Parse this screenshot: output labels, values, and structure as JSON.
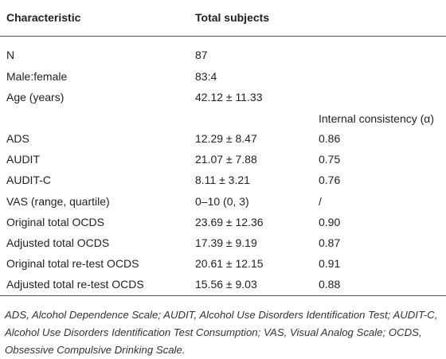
{
  "table": {
    "header": [
      "Characteristic",
      "Total subjects"
    ],
    "rows_top": [
      [
        "N",
        "87"
      ],
      [
        "Male:female",
        "83:4"
      ],
      [
        "Age (years)",
        "42.12 ± 11.33"
      ]
    ],
    "subheader": "Internal consistency (α)",
    "rows": [
      [
        "ADS",
        "12.29 ± 8.47",
        "0.86"
      ],
      [
        "AUDIT",
        "21.07 ± 7.88",
        "0.75"
      ],
      [
        "AUDIT-C",
        "8.11 ± 3.21",
        "0.76"
      ],
      [
        "VAS (range, quartile)",
        "0–10 (0, 3)",
        "/"
      ],
      [
        "Original total OCDS",
        "23.69 ± 12.36",
        "0.90"
      ],
      [
        "Adjusted total OCDS",
        "17.39 ± 9.19",
        "0.87"
      ],
      [
        "Original total re-test OCDS",
        "20.61 ± 12.15",
        "0.91"
      ],
      [
        "Adjusted total re-test OCDS",
        "15.56 ± 9.03",
        "0.88"
      ]
    ]
  },
  "footnote": "ADS, Alcohol Dependence Scale; AUDIT, Alcohol Use Disorders Identification Test; AUDIT-C, Alcohol Use Disorders Identification Test Consumption; VAS, Visual Analog Scale; OCDS, Obsessive Compulsive Drinking Scale."
}
